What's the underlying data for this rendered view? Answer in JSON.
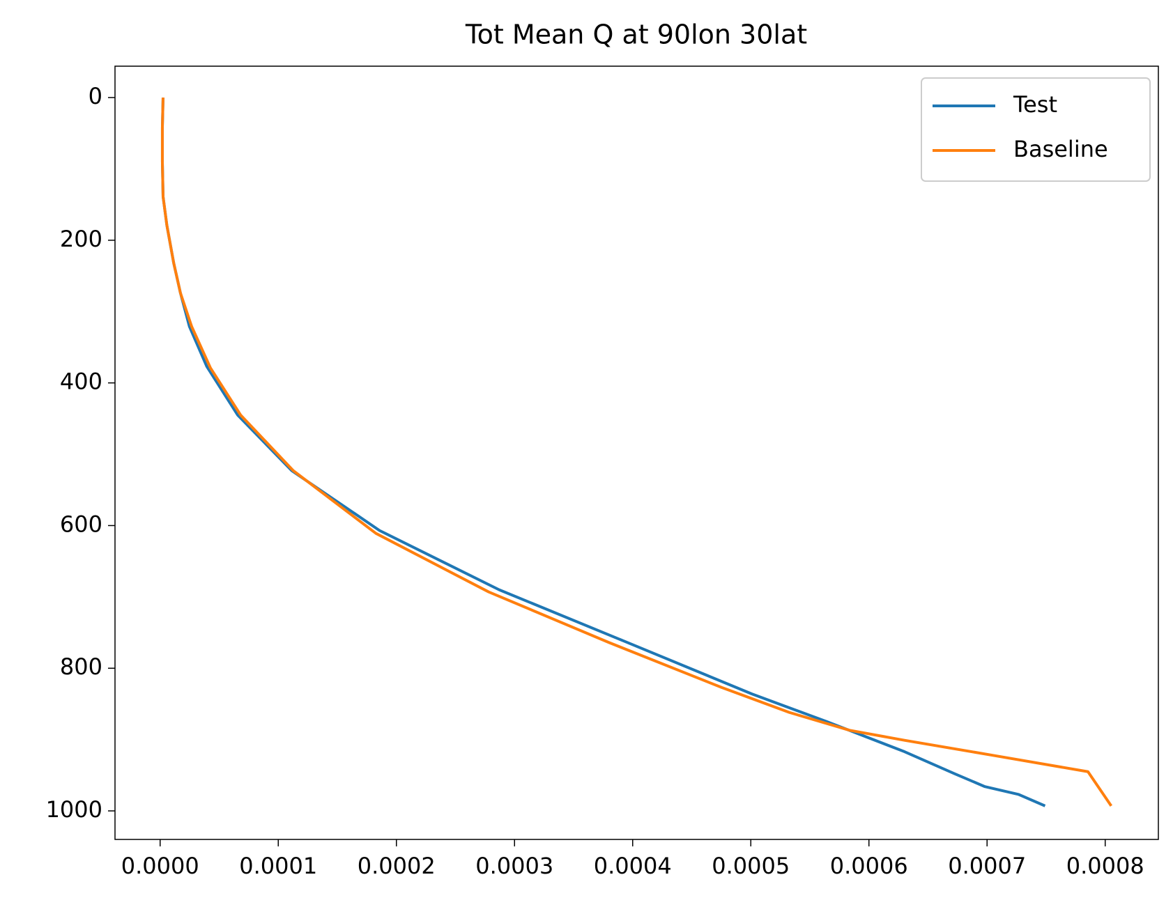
{
  "chart_data": {
    "type": "line",
    "title": "Tot Mean Q at 90lon 30lat",
    "series": [
      {
        "name": "Test",
        "color": "#1f77b4",
        "x": [
          2.5e-06,
          1.9e-06,
          1.9e-06,
          2.5e-06,
          5.7e-06,
          1.15e-05,
          1.72e-05,
          2.48e-05,
          3.95e-05,
          6.56e-05,
          0.0001114,
          0.0001858,
          0.000287,
          0.0003927,
          0.0005009,
          0.0005645,
          0.0006301,
          0.0006727,
          0.0006982,
          0.0007268,
          0.0007491
        ],
        "values": [
          0,
          42,
          90,
          139,
          179,
          232,
          274,
          321,
          377,
          445,
          523,
          607,
          690,
          762,
          836,
          875,
          917,
          948,
          966,
          977,
          993
        ]
      },
      {
        "name": "Baseline",
        "color": "#ff7f0e",
        "x": [
          2.5e-06,
          1.9e-06,
          1.9e-06,
          2.5e-06,
          5.7e-06,
          1.15e-05,
          1.72e-05,
          2.67e-05,
          4.26e-05,
          6.81e-05,
          0.0001127,
          0.0001827,
          0.0002781,
          0.00038,
          0.0004754,
          0.0005327,
          0.0005836,
          0.0006301,
          0.0007046,
          0.0007854,
          0.0008051
        ],
        "values": [
          0,
          42,
          90,
          139,
          179,
          232,
          274,
          321,
          379,
          445,
          523,
          611,
          693,
          764,
          827,
          862,
          887,
          901,
          922,
          945,
          993
        ]
      }
    ],
    "xlim": [
      -3.82e-05,
      0.000845
    ],
    "ylim": [
      -44,
      1040
    ],
    "y_inverted": true,
    "xticks": [
      {
        "value": 0,
        "label": "0.0000"
      },
      {
        "value": 0.0001,
        "label": "0.0001"
      },
      {
        "value": 0.0002,
        "label": "0.0002"
      },
      {
        "value": 0.0003,
        "label": "0.0003"
      },
      {
        "value": 0.0004,
        "label": "0.0004"
      },
      {
        "value": 0.0005,
        "label": "0.0005"
      },
      {
        "value": 0.0006,
        "label": "0.0006"
      },
      {
        "value": 0.0007,
        "label": "0.0007"
      },
      {
        "value": 0.0008,
        "label": "0.0008"
      }
    ],
    "yticks": [
      0,
      200,
      400,
      600,
      800,
      1000
    ],
    "grid": false,
    "legend": "upper right"
  }
}
